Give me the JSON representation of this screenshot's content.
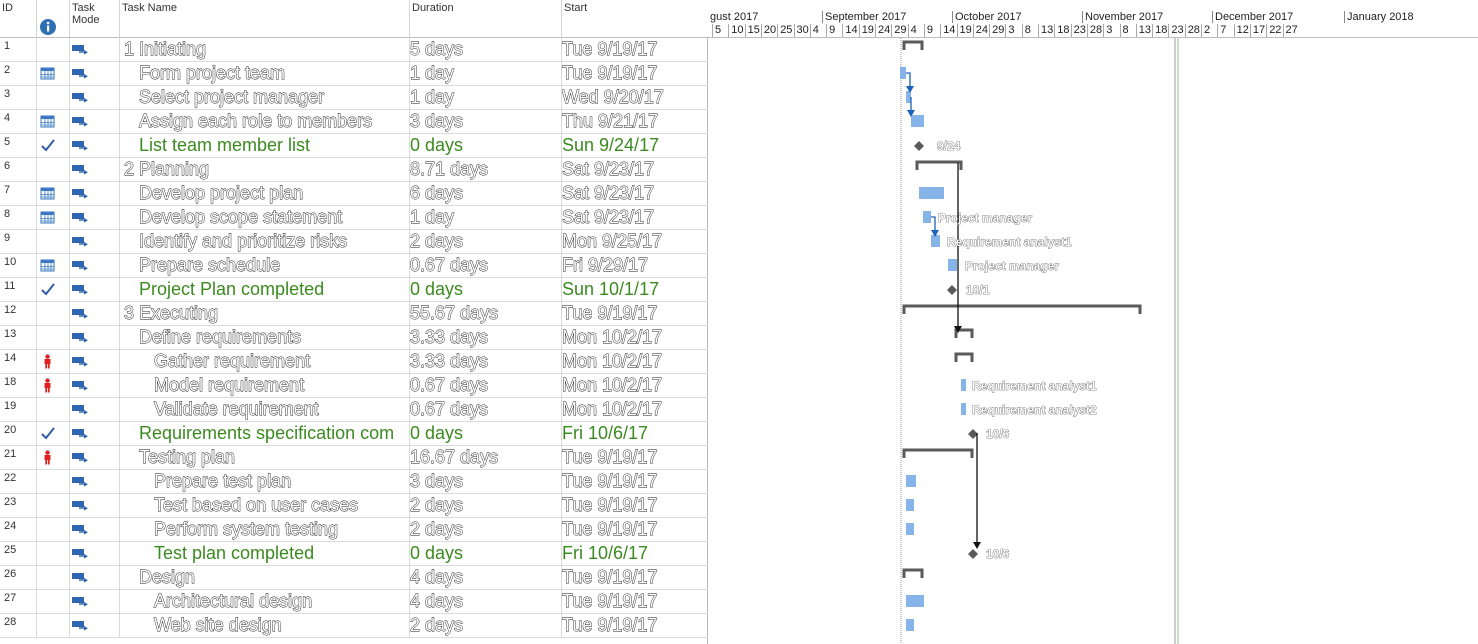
{
  "columns": {
    "id": "ID",
    "indicators_icon": "info-icon",
    "task_mode": "Task\nMode",
    "task_name": "Task Name",
    "duration": "Duration",
    "start": "Start"
  },
  "timescale": {
    "months": [
      "gust 2017",
      "September 2017",
      "October 2017",
      "November 2017",
      "December 2017",
      "January 2018"
    ],
    "days": [
      "5",
      "10",
      "15",
      "20",
      "25",
      "30",
      "4",
      "9",
      "14",
      "19",
      "24",
      "29",
      "4",
      "9",
      "14",
      "19",
      "24",
      "29",
      "3",
      "8",
      "13",
      "18",
      "23",
      "28",
      "3",
      "8",
      "13",
      "18",
      "23",
      "28",
      "2",
      "7",
      "12",
      "17",
      "22",
      "27"
    ]
  },
  "tasks": [
    {
      "id": "1",
      "indicator": "",
      "name": "1 Initiating",
      "indent": 0,
      "duration": "5 days",
      "start": "Tue 9/19/17",
      "status": "normal"
    },
    {
      "id": "2",
      "indicator": "calendar-icon",
      "name": "Form project team",
      "indent": 1,
      "duration": "1 day",
      "start": "Tue 9/19/17",
      "status": "normal"
    },
    {
      "id": "3",
      "indicator": "",
      "name": "Select project manager",
      "indent": 1,
      "duration": "1 day",
      "start": "Wed 9/20/17",
      "status": "normal"
    },
    {
      "id": "4",
      "indicator": "calendar-icon",
      "name": "Assign each role to members",
      "indent": 1,
      "duration": "3 days",
      "start": "Thu 9/21/17",
      "status": "normal"
    },
    {
      "id": "5",
      "indicator": "checkmark-icon",
      "name": "List team member list",
      "indent": 1,
      "duration": "0 days",
      "start": "Sun 9/24/17",
      "status": "done"
    },
    {
      "id": "6",
      "indicator": "",
      "name": "2 Planning",
      "indent": 0,
      "duration": "8.71 days",
      "start": "Sat 9/23/17",
      "status": "normal"
    },
    {
      "id": "7",
      "indicator": "calendar-icon",
      "name": "Develop project plan",
      "indent": 1,
      "duration": "6 days",
      "start": "Sat 9/23/17",
      "status": "normal"
    },
    {
      "id": "8",
      "indicator": "calendar-icon",
      "name": "Develop scope statement",
      "indent": 1,
      "duration": "1 day",
      "start": "Sat 9/23/17",
      "status": "normal"
    },
    {
      "id": "9",
      "indicator": "",
      "name": "Identify and prioritize risks",
      "indent": 1,
      "duration": "2 days",
      "start": "Mon 9/25/17",
      "status": "normal"
    },
    {
      "id": "10",
      "indicator": "calendar-icon",
      "name": "Prepare schedule",
      "indent": 1,
      "duration": "0.67 days",
      "start": "Fri 9/29/17",
      "status": "normal"
    },
    {
      "id": "11",
      "indicator": "checkmark-icon",
      "name": "Project Plan completed",
      "indent": 1,
      "duration": "0 days",
      "start": "Sun 10/1/17",
      "status": "done"
    },
    {
      "id": "12",
      "indicator": "",
      "name": "3 Executing",
      "indent": 0,
      "duration": "55.67 days",
      "start": "Tue 9/19/17",
      "status": "normal"
    },
    {
      "id": "13",
      "indicator": "",
      "name": "Define requirements",
      "indent": 1,
      "duration": "3.33 days",
      "start": "Mon 10/2/17",
      "status": "normal"
    },
    {
      "id": "14",
      "indicator": "person-icon",
      "name": "Gather requirement",
      "indent": 2,
      "duration": "3.33 days",
      "start": "Mon 10/2/17",
      "status": "normal"
    },
    {
      "id": "18",
      "indicator": "person-icon",
      "name": "Model requirement",
      "indent": 2,
      "duration": "0.67 days",
      "start": "Mon 10/2/17",
      "status": "normal"
    },
    {
      "id": "19",
      "indicator": "",
      "name": "Validate requirement",
      "indent": 2,
      "duration": "0.67 days",
      "start": "Mon 10/2/17",
      "status": "normal"
    },
    {
      "id": "20",
      "indicator": "checkmark-icon",
      "name": "Requirements specification com",
      "indent": 1,
      "duration": "0 days",
      "start": "Fri 10/6/17",
      "status": "done"
    },
    {
      "id": "21",
      "indicator": "person-icon",
      "name": "Testing plan",
      "indent": 1,
      "duration": "16.67 days",
      "start": "Tue 9/19/17",
      "status": "normal"
    },
    {
      "id": "22",
      "indicator": "",
      "name": "Prepare test plan",
      "indent": 2,
      "duration": "3 days",
      "start": "Tue 9/19/17",
      "status": "normal"
    },
    {
      "id": "23",
      "indicator": "",
      "name": "Test based on user cases",
      "indent": 2,
      "duration": "2 days",
      "start": "Tue 9/19/17",
      "status": "normal"
    },
    {
      "id": "24",
      "indicator": "",
      "name": "Perform system testing",
      "indent": 2,
      "duration": "2 days",
      "start": "Tue 9/19/17",
      "status": "normal"
    },
    {
      "id": "25",
      "indicator": "",
      "name": "Test plan completed",
      "indent": 2,
      "duration": "0 days",
      "start": "Fri 10/6/17",
      "status": "done"
    },
    {
      "id": "26",
      "indicator": "",
      "name": "Design",
      "indent": 1,
      "duration": "4 days",
      "start": "Tue 9/19/17",
      "status": "normal"
    },
    {
      "id": "27",
      "indicator": "",
      "name": "Architectural design",
      "indent": 2,
      "duration": "4 days",
      "start": "Tue 9/19/17",
      "status": "normal"
    },
    {
      "id": "28",
      "indicator": "",
      "name": "Web site design",
      "indent": 2,
      "duration": "2 days",
      "start": "Tue 9/19/17",
      "status": "normal"
    }
  ],
  "gantt_labels": {
    "5": "9/24",
    "8": "Project manager",
    "9": "Requirement analyst1",
    "10": "Project manager",
    "11": "10/1",
    "18": "Requirement analyst1",
    "19": "Requirement analyst2",
    "20": "10/6",
    "25": "10/6"
  },
  "colors": {
    "done_text": "#3b8a1f",
    "task_bar": "#86b4e8",
    "summary_bar": "#5a5a5a",
    "milestone": "#5a5a5a",
    "link_arrow": "#1a63b8",
    "indicator_check": "#2d5fa8",
    "indicator_person": "#e02020",
    "indicator_calendar": "#3a78c2"
  }
}
